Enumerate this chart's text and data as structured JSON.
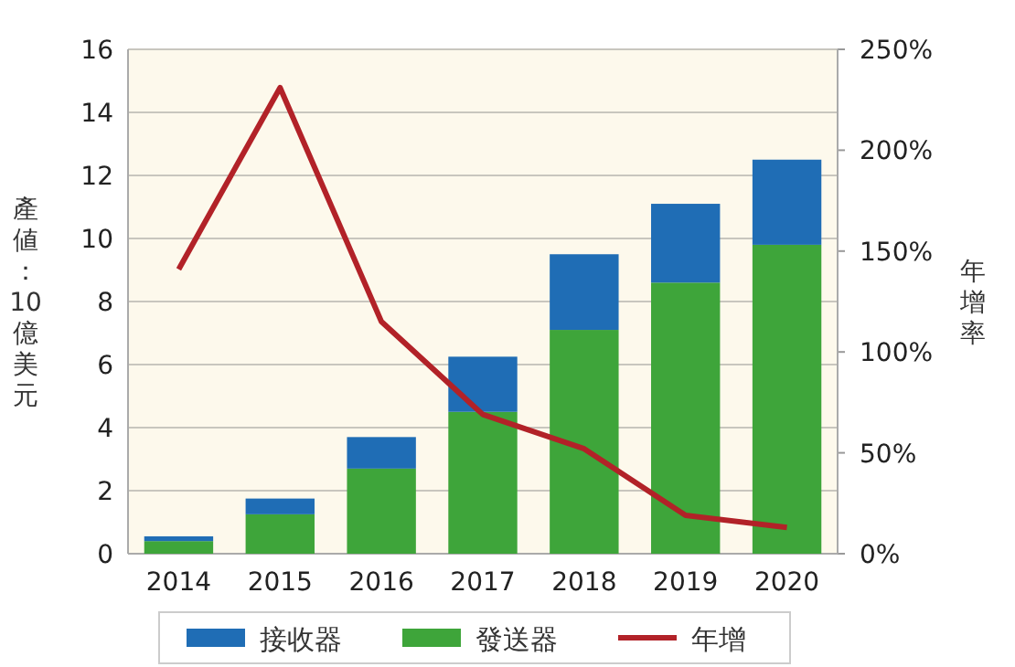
{
  "chart_data": {
    "type": "bar",
    "stacked": true,
    "categories": [
      "2014",
      "2015",
      "2016",
      "2017",
      "2018",
      "2019",
      "2020"
    ],
    "ylabel": "產値：10億美元",
    "y2label": "年增率",
    "ylim": [
      0,
      16
    ],
    "yticks": [
      0,
      2,
      4,
      6,
      8,
      10,
      12,
      14,
      16
    ],
    "y2lim": [
      0,
      250
    ],
    "y2ticks": [
      {
        "value": 0,
        "label": "0%"
      },
      {
        "value": 50,
        "label": "50%"
      },
      {
        "value": 100,
        "label": "100%"
      },
      {
        "value": 150,
        "label": "150%"
      },
      {
        "value": 200,
        "label": "200%"
      },
      {
        "value": 250,
        "label": "250%"
      }
    ],
    "grid": "y",
    "legend": "bottom",
    "series": [
      {
        "name": "發送器",
        "color": "#3ea53a",
        "values": [
          0.4,
          1.25,
          2.7,
          4.5,
          7.1,
          8.6,
          9.8
        ]
      },
      {
        "name": "接收器",
        "color": "#1f6db5",
        "values": [
          0.15,
          0.5,
          1.0,
          1.75,
          2.4,
          2.5,
          2.7
        ]
      },
      {
        "name": "年增",
        "type": "line",
        "axis": "y2",
        "color": "#b22228",
        "values": [
          141,
          231,
          115,
          69,
          52,
          19,
          13
        ]
      }
    ]
  }
}
